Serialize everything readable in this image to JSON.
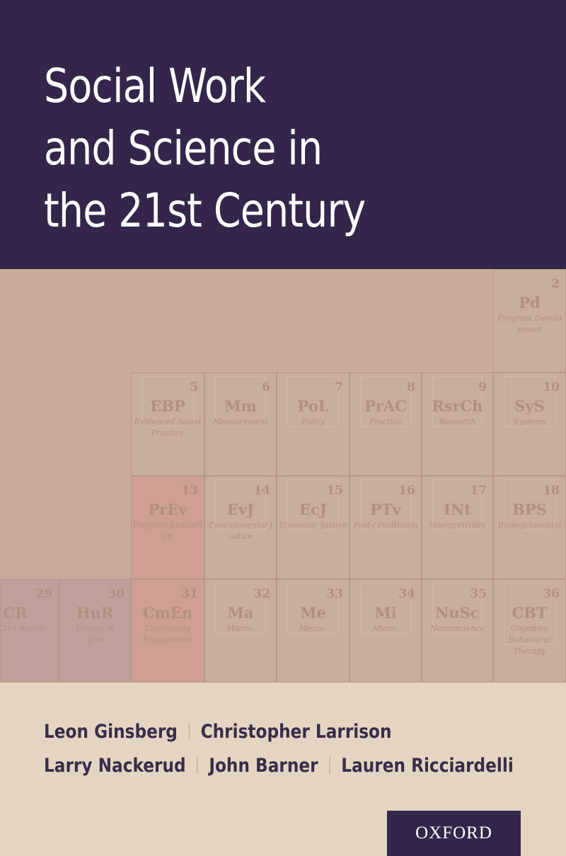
{
  "title_lines": [
    "Social Work",
    "and Science in",
    "the 21st Century"
  ],
  "elements": [
    {
      "num": "2",
      "sym": "Pd",
      "name": "Program Development"
    },
    {
      "num": "5",
      "sym": "EBP",
      "name": "Evidenced-based Practice"
    },
    {
      "num": "6",
      "sym": "Mm",
      "name": "Measurement"
    },
    {
      "num": "7",
      "sym": "PoL",
      "name": "Policy"
    },
    {
      "num": "8",
      "sym": "PrAC",
      "name": "Practice"
    },
    {
      "num": "9",
      "sym": "RsrCh",
      "name": "Research"
    },
    {
      "num": "10",
      "sym": "SyS",
      "name": "Systems"
    },
    {
      "num": "13",
      "sym": "PrEv",
      "name": "Program Evaluation"
    },
    {
      "num": "14",
      "sym": "EvJ",
      "name": "Environmental Justice"
    },
    {
      "num": "15",
      "sym": "EcJ",
      "name": "Economic Justice"
    },
    {
      "num": "16",
      "sym": "PTv",
      "name": "Post-/ Positivism"
    },
    {
      "num": "17",
      "sym": "INt",
      "name": "Interpretivism"
    },
    {
      "num": "18",
      "sym": "BPS",
      "name": "Biopsychosocial"
    },
    {
      "num": "29",
      "sym": "CR",
      "name": "Civil Rights"
    },
    {
      "num": "30",
      "sym": "HuR",
      "name": "Human Rights"
    },
    {
      "num": "31",
      "sym": "CmEn",
      "name": "Community Engagement"
    },
    {
      "num": "32",
      "sym": "Ma",
      "name": "Macro-"
    },
    {
      "num": "33",
      "sym": "Me",
      "name": "Mezzo-"
    },
    {
      "num": "34",
      "sym": "Mi",
      "name": "Micro-"
    },
    {
      "num": "35",
      "sym": "NuSc",
      "name": "Neuroscience"
    },
    {
      "num": "36",
      "sym": "CBT",
      "name": "Cognitive Behavioral Therapy"
    }
  ],
  "authors": [
    "Leon Ginsberg",
    "Christopher Larrison",
    "Larry Nackerud",
    "John Barner",
    "Lauren Ricciardelli"
  ],
  "publisher": "OXFORD",
  "colors": {
    "band": "#34264a",
    "background": "#e4d5c2",
    "table": "#c8ab9c",
    "accent_cell": "#cf9f94",
    "author_text": "#3a2c4a"
  }
}
